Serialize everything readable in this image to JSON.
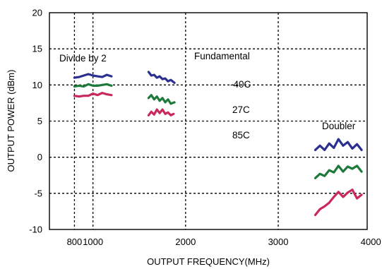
{
  "chart_data": {
    "type": "line",
    "xlabel": "OUTPUT FREQUENCY(MHz)",
    "ylabel": "OUTPUT POWER (dBm)",
    "xlim": [
      530,
      3960
    ],
    "ylim": [
      -10,
      20
    ],
    "x_ticks": [
      {
        "value": 800,
        "label": "800"
      },
      {
        "value": 1000,
        "label": "1000"
      },
      {
        "value": 2000,
        "label": "2000"
      },
      {
        "value": 3000,
        "label": "3000"
      },
      {
        "value": 4000,
        "label": "4000"
      }
    ],
    "x_gridlines": [
      800,
      1000,
      2000,
      3000
    ],
    "y_ticks": [
      -10,
      -5,
      0,
      5,
      10,
      15,
      20
    ],
    "grid": true,
    "annotations": {
      "divide_by_2": "Divide by 2",
      "fundamental": "Fundamental",
      "doubler": "Doubler",
      "temp_cold": "-40C",
      "temp_room": "27C",
      "temp_hot": "85C"
    },
    "colors": {
      "minus40C": "#2b2f8f",
      "plus27C": "#1d7a3a",
      "plus85C": "#c8285a"
    },
    "series": [
      {
        "color_key": "minus40C",
        "group": "Divide by 2",
        "points": [
          [
            800,
            11.0
          ],
          [
            850,
            11.1
          ],
          [
            900,
            11.3
          ],
          [
            950,
            11.5
          ],
          [
            1000,
            11.3
          ],
          [
            1050,
            11.2
          ],
          [
            1100,
            11.1
          ],
          [
            1150,
            11.4
          ],
          [
            1200,
            11.2
          ]
        ]
      },
      {
        "color_key": "plus27C",
        "group": "Divide by 2",
        "points": [
          [
            800,
            9.8
          ],
          [
            850,
            9.9
          ],
          [
            900,
            9.8
          ],
          [
            950,
            10.1
          ],
          [
            1000,
            9.9
          ],
          [
            1050,
            9.9
          ],
          [
            1100,
            10.0
          ],
          [
            1150,
            10.1
          ],
          [
            1200,
            9.9
          ]
        ]
      },
      {
        "color_key": "plus85C",
        "group": "Divide by 2",
        "points": [
          [
            800,
            8.5
          ],
          [
            850,
            8.4
          ],
          [
            900,
            8.5
          ],
          [
            950,
            8.5
          ],
          [
            1000,
            8.8
          ],
          [
            1050,
            8.6
          ],
          [
            1100,
            8.9
          ],
          [
            1150,
            8.7
          ],
          [
            1200,
            8.6
          ]
        ]
      },
      {
        "color_key": "minus40C",
        "group": "Fundamental",
        "points": [
          [
            1600,
            11.8
          ],
          [
            1630,
            11.3
          ],
          [
            1660,
            11.4
          ],
          [
            1690,
            11.0
          ],
          [
            1720,
            11.2
          ],
          [
            1750,
            10.8
          ],
          [
            1780,
            10.9
          ],
          [
            1810,
            10.5
          ],
          [
            1840,
            10.7
          ],
          [
            1880,
            10.3
          ]
        ]
      },
      {
        "color_key": "plus27C",
        "group": "Fundamental",
        "points": [
          [
            1600,
            8.2
          ],
          [
            1630,
            8.6
          ],
          [
            1660,
            8.0
          ],
          [
            1690,
            8.4
          ],
          [
            1720,
            7.8
          ],
          [
            1750,
            8.2
          ],
          [
            1780,
            7.6
          ],
          [
            1810,
            8.0
          ],
          [
            1840,
            7.4
          ],
          [
            1880,
            7.6
          ]
        ]
      },
      {
        "color_key": "plus85C",
        "group": "Fundamental",
        "points": [
          [
            1600,
            5.8
          ],
          [
            1630,
            6.3
          ],
          [
            1660,
            5.9
          ],
          [
            1690,
            6.6
          ],
          [
            1720,
            6.1
          ],
          [
            1750,
            6.6
          ],
          [
            1780,
            6.0
          ],
          [
            1810,
            6.2
          ],
          [
            1840,
            5.8
          ],
          [
            1870,
            6.0
          ]
        ]
      },
      {
        "color_key": "minus40C",
        "group": "Doubler",
        "points": [
          [
            3400,
            1.0
          ],
          [
            3450,
            1.6
          ],
          [
            3500,
            1.0
          ],
          [
            3550,
            1.9
          ],
          [
            3600,
            1.3
          ],
          [
            3650,
            2.5
          ],
          [
            3700,
            1.6
          ],
          [
            3750,
            2.1
          ],
          [
            3800,
            1.2
          ],
          [
            3850,
            1.8
          ],
          [
            3900,
            1.0
          ]
        ]
      },
      {
        "color_key": "plus27C",
        "group": "Doubler",
        "points": [
          [
            3400,
            -2.9
          ],
          [
            3450,
            -2.3
          ],
          [
            3500,
            -2.6
          ],
          [
            3550,
            -1.8
          ],
          [
            3600,
            -2.1
          ],
          [
            3650,
            -1.2
          ],
          [
            3700,
            -2.0
          ],
          [
            3750,
            -1.3
          ],
          [
            3800,
            -1.6
          ],
          [
            3850,
            -1.2
          ],
          [
            3900,
            -2.0
          ]
        ]
      },
      {
        "color_key": "plus85C",
        "group": "Doubler",
        "points": [
          [
            3400,
            -8.0
          ],
          [
            3450,
            -7.2
          ],
          [
            3500,
            -6.8
          ],
          [
            3550,
            -6.3
          ],
          [
            3600,
            -5.5
          ],
          [
            3650,
            -4.8
          ],
          [
            3700,
            -5.5
          ],
          [
            3750,
            -4.9
          ],
          [
            3800,
            -4.5
          ],
          [
            3850,
            -5.7
          ],
          [
            3900,
            -5.2
          ]
        ]
      }
    ]
  }
}
